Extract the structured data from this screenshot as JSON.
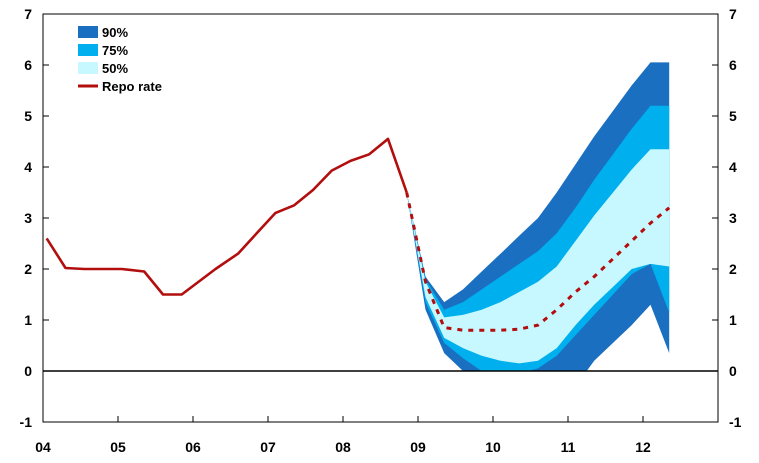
{
  "chart_data": {
    "type": "area",
    "title": "",
    "xlabel": "",
    "ylabel": "",
    "x_range": [
      2004.0,
      2013.0
    ],
    "ylim": [
      -1,
      7
    ],
    "y_ticks": [
      -1,
      0,
      1,
      2,
      3,
      4,
      5,
      6,
      7
    ],
    "x_tick_labels": [
      {
        "x": 2004.0,
        "label": "04"
      },
      {
        "x": 2005.0,
        "label": "05"
      },
      {
        "x": 2006.0,
        "label": "06"
      },
      {
        "x": 2007.0,
        "label": "07"
      },
      {
        "x": 2008.0,
        "label": "08"
      },
      {
        "x": 2009.0,
        "label": "09"
      },
      {
        "x": 2010.0,
        "label": "10"
      },
      {
        "x": 2011.0,
        "label": "11"
      },
      {
        "x": 2012.0,
        "label": "12"
      }
    ],
    "legend": [
      {
        "label": "90%",
        "color": "#1a6fc0"
      },
      {
        "label": "75%",
        "color": "#00b0ee"
      },
      {
        "label": "50%",
        "color": "#c8f8ff"
      },
      {
        "label": "Repo rate",
        "color": "#b20e0e"
      }
    ],
    "legend_position": "top-left",
    "series": [
      {
        "name": "Repo rate",
        "style": "solid",
        "color": "#b20e0e",
        "points": [
          [
            2004.05,
            2.6
          ],
          [
            2004.3,
            2.02
          ],
          [
            2004.55,
            2.0
          ],
          [
            2004.8,
            2.0
          ],
          [
            2005.05,
            2.0
          ],
          [
            2005.35,
            1.95
          ],
          [
            2005.6,
            1.5
          ],
          [
            2005.85,
            1.5
          ],
          [
            2006.3,
            2.0
          ],
          [
            2006.6,
            2.3
          ],
          [
            2006.85,
            2.7
          ],
          [
            2007.1,
            3.1
          ],
          [
            2007.35,
            3.25
          ],
          [
            2007.6,
            3.55
          ],
          [
            2007.85,
            3.93
          ],
          [
            2008.1,
            4.12
          ],
          [
            2008.35,
            4.25
          ],
          [
            2008.6,
            4.55
          ],
          [
            2008.85,
            3.5
          ]
        ]
      },
      {
        "name": "Repo rate forecast",
        "style": "dashed",
        "color": "#b20e0e",
        "points": [
          [
            2008.85,
            3.5
          ],
          [
            2009.1,
            1.75
          ],
          [
            2009.35,
            0.85
          ],
          [
            2009.6,
            0.8
          ],
          [
            2009.85,
            0.8
          ],
          [
            2010.1,
            0.8
          ],
          [
            2010.35,
            0.82
          ],
          [
            2010.6,
            0.9
          ],
          [
            2010.85,
            1.2
          ],
          [
            2011.1,
            1.55
          ],
          [
            2011.35,
            1.85
          ],
          [
            2011.6,
            2.2
          ],
          [
            2011.85,
            2.55
          ],
          [
            2012.1,
            2.9
          ],
          [
            2012.35,
            3.2
          ]
        ]
      }
    ],
    "fan": {
      "x": [
        2008.85,
        2009.1,
        2009.35,
        2009.6,
        2009.85,
        2010.1,
        2010.35,
        2010.6,
        2010.85,
        2011.1,
        2011.35,
        2011.6,
        2011.85,
        2012.1,
        2012.35
      ],
      "bands": [
        {
          "name": "90%",
          "color": "#1a6fc0",
          "upper": [
            3.5,
            1.85,
            1.35,
            1.6,
            1.95,
            2.3,
            2.65,
            3.0,
            3.5,
            4.05,
            4.6,
            5.1,
            5.6,
            6.05,
            6.05
          ],
          "lower": [
            3.5,
            1.2,
            0.35,
            0.0,
            -0.2,
            -0.3,
            -0.3,
            -0.3,
            -0.3,
            -0.3,
            0.2,
            0.55,
            0.9,
            1.3,
            0.35
          ]
        },
        {
          "name": "75%",
          "color": "#00b0ee",
          "upper": [
            3.5,
            1.8,
            1.2,
            1.35,
            1.6,
            1.85,
            2.1,
            2.35,
            2.7,
            3.2,
            3.75,
            4.25,
            4.75,
            5.2,
            5.2
          ],
          "lower": [
            3.5,
            1.35,
            0.55,
            0.25,
            0.0,
            -0.05,
            -0.05,
            0.05,
            0.3,
            0.7,
            1.1,
            1.5,
            1.9,
            2.1,
            1.15
          ]
        },
        {
          "name": "50%",
          "color": "#c8f8ff",
          "upper": [
            3.5,
            1.75,
            1.05,
            1.1,
            1.2,
            1.35,
            1.55,
            1.75,
            2.05,
            2.55,
            3.05,
            3.5,
            3.95,
            4.35,
            4.35
          ],
          "lower": [
            3.5,
            1.45,
            0.65,
            0.45,
            0.3,
            0.2,
            0.15,
            0.2,
            0.45,
            0.9,
            1.3,
            1.65,
            2.0,
            2.1,
            2.05
          ]
        }
      ]
    }
  }
}
